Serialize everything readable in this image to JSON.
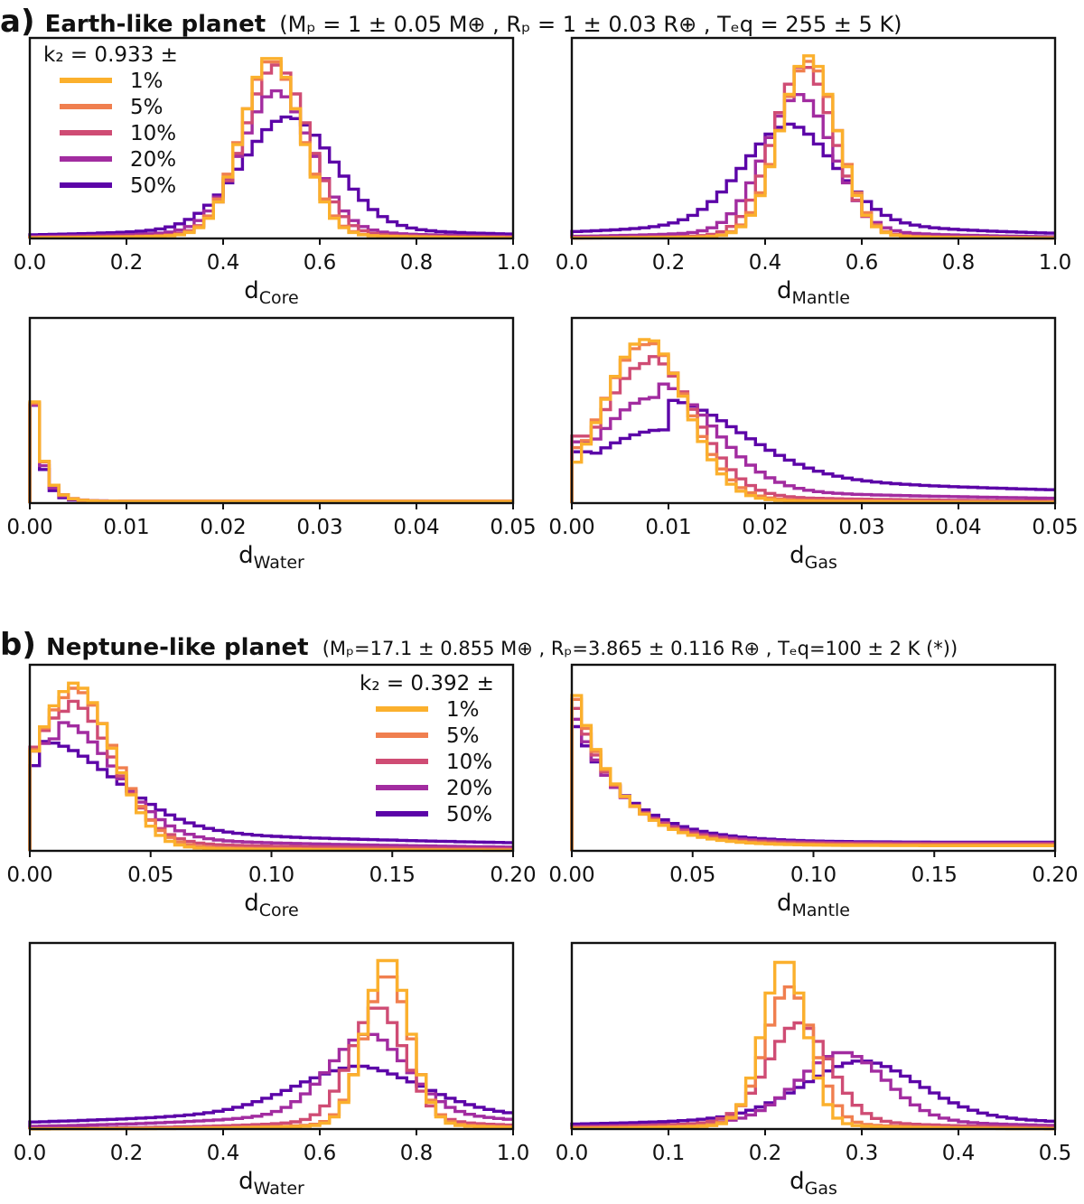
{
  "sections": [
    {
      "letter": "a)",
      "name": "Earth-like planet",
      "params": "(Mₚ = 1 ± 0.05 M⊕ , Rₚ = 1 ± 0.03 R⊕ , Tₑq = 255 ± 5 K)"
    },
    {
      "letter": "b)",
      "name": "Neptune-like planet",
      "params": "(Mₚ=17.1 ± 0.855 M⊕ , Rₚ=3.865 ± 0.116 R⊕ , Tₑq=100 ± 2 K (*))"
    }
  ],
  "colors": {
    "1%": "#fbb02d",
    "5%": "#f07f4f",
    "10%": "#cf4c74",
    "20%": "#a22ca0",
    "50%": "#5c04a8"
  },
  "legends": [
    {
      "panel": 0,
      "title": "k₂ = 0.933 ±",
      "entries": [
        "1%",
        "5%",
        "10%",
        "20%",
        "50%"
      ]
    },
    {
      "panel": 5,
      "title": "k₂ = 0.392 ±",
      "entries": [
        "1%",
        "5%",
        "10%",
        "20%",
        "50%"
      ]
    }
  ],
  "chart_data": [
    {
      "type": "histogram",
      "panel": 0,
      "xlabel": "d_Core",
      "xlim": [
        0,
        1.0
      ],
      "ticks": [
        "0.0",
        "0.2",
        "0.4",
        "0.6",
        "0.8",
        "1.0"
      ],
      "shape": "gauss",
      "series": [
        {
          "name": "1%",
          "center": 0.5,
          "width": 0.06,
          "height": 0.96,
          "tail": 0.03
        },
        {
          "name": "5%",
          "center": 0.5,
          "width": 0.062,
          "height": 0.94,
          "tail": 0.03
        },
        {
          "name": "10%",
          "center": 0.51,
          "width": 0.066,
          "height": 0.9,
          "tail": 0.04
        },
        {
          "name": "20%",
          "center": 0.51,
          "width": 0.072,
          "height": 0.74,
          "tail": 0.06
        },
        {
          "name": "50%",
          "center": 0.535,
          "width": 0.095,
          "height": 0.58,
          "tail": 0.08
        }
      ]
    },
    {
      "type": "histogram",
      "panel": 1,
      "xlabel": "d_Mantle",
      "xlim": [
        0,
        1.0
      ],
      "ticks": [
        "0.0",
        "0.2",
        "0.4",
        "0.6",
        "0.8",
        "1.0"
      ],
      "shape": "gauss",
      "series": [
        {
          "name": "1%",
          "center": 0.49,
          "width": 0.058,
          "height": 0.97,
          "tail": 0.02
        },
        {
          "name": "5%",
          "center": 0.49,
          "width": 0.06,
          "height": 0.94,
          "tail": 0.02
        },
        {
          "name": "10%",
          "center": 0.48,
          "width": 0.062,
          "height": 0.91,
          "tail": 0.03
        },
        {
          "name": "20%",
          "center": 0.47,
          "width": 0.07,
          "height": 0.72,
          "tail": 0.06
        },
        {
          "name": "50%",
          "center": 0.45,
          "width": 0.095,
          "height": 0.5,
          "tail": 0.12
        }
      ]
    },
    {
      "type": "histogram",
      "panel": 2,
      "xlabel": "d_Water",
      "xlim": [
        0,
        0.05
      ],
      "ticks": [
        "0.00",
        "0.01",
        "0.02",
        "0.03",
        "0.04",
        "0.05"
      ],
      "shape": "decay",
      "series": [
        {
          "name": "1%",
          "peak": 0.92,
          "scale": 0.0011,
          "floor": 0.01
        },
        {
          "name": "5%",
          "peak": 0.91,
          "scale": 0.0011,
          "floor": 0.01
        },
        {
          "name": "10%",
          "peak": 0.9,
          "scale": 0.0011,
          "floor": 0.012
        },
        {
          "name": "20%",
          "peak": 0.93,
          "scale": 0.001,
          "floor": 0.012
        },
        {
          "name": "50%",
          "peak": 0.98,
          "scale": 0.0009,
          "floor": 0.012
        }
      ]
    },
    {
      "type": "histogram",
      "panel": 3,
      "xlabel": "d_Gas",
      "xlim": [
        0,
        0.05
      ],
      "ticks": [
        "0.00",
        "0.01",
        "0.02",
        "0.03",
        "0.04",
        "0.05"
      ],
      "shape": "skew",
      "series": [
        {
          "name": "1%",
          "center": 0.0075,
          "width": 0.0042,
          "height": 0.96,
          "tail": 0.02,
          "start": 0.25
        },
        {
          "name": "5%",
          "center": 0.0075,
          "width": 0.0044,
          "height": 0.93,
          "tail": 0.03,
          "start": 0.35
        },
        {
          "name": "10%",
          "center": 0.0078,
          "width": 0.0048,
          "height": 0.82,
          "tail": 0.05,
          "start": 0.48
        },
        {
          "name": "20%",
          "center": 0.0085,
          "width": 0.006,
          "height": 0.62,
          "tail": 0.09,
          "start": 0.58
        },
        {
          "name": "50%",
          "center": 0.0095,
          "width": 0.008,
          "height": 0.43,
          "tail": 0.18,
          "start": 0.7
        }
      ]
    },
    {
      "type": "histogram",
      "panel": 4,
      "xlabel": "d_Core",
      "xlim": [
        0,
        0.2
      ],
      "ticks": [
        "0.00",
        "0.05",
        "0.10",
        "0.15",
        "0.20"
      ],
      "shape": "skew",
      "series": [
        {
          "name": "1%",
          "center": 0.018,
          "width": 0.016,
          "height": 0.96,
          "tail": 0.02,
          "start": 0.4
        },
        {
          "name": "5%",
          "center": 0.018,
          "width": 0.017,
          "height": 0.92,
          "tail": 0.03,
          "start": 0.45
        },
        {
          "name": "10%",
          "center": 0.016,
          "width": 0.018,
          "height": 0.82,
          "tail": 0.06,
          "start": 0.5
        },
        {
          "name": "20%",
          "center": 0.013,
          "width": 0.022,
          "height": 0.66,
          "tail": 0.09,
          "start": 0.58
        },
        {
          "name": "50%",
          "center": 0.005,
          "width": 0.03,
          "height": 0.5,
          "tail": 0.14,
          "start": 0.95
        }
      ]
    },
    {
      "type": "histogram",
      "panel": 5,
      "xlabel": "d_Mantle",
      "xlim": [
        0,
        0.2
      ],
      "ticks": [
        "0.00",
        "0.05",
        "0.10",
        "0.15",
        "0.20"
      ],
      "shape": "decay",
      "series": [
        {
          "name": "1%",
          "peak": 0.98,
          "scale": 0.018,
          "floor": 0.03
        },
        {
          "name": "5%",
          "peak": 0.95,
          "scale": 0.018,
          "floor": 0.035
        },
        {
          "name": "10%",
          "peak": 0.88,
          "scale": 0.019,
          "floor": 0.04
        },
        {
          "name": "20%",
          "peak": 0.8,
          "scale": 0.02,
          "floor": 0.045
        },
        {
          "name": "50%",
          "peak": 0.74,
          "scale": 0.022,
          "floor": 0.05
        }
      ]
    },
    {
      "type": "histogram",
      "panel": 6,
      "xlabel": "d_Water",
      "xlim": [
        0,
        1.0
      ],
      "ticks": [
        "0.0",
        "0.2",
        "0.4",
        "0.6",
        "0.8",
        "1.0"
      ],
      "shape": "gauss",
      "series": [
        {
          "name": "1%",
          "center": 0.74,
          "width": 0.045,
          "height": 0.97,
          "tail": 0.04
        },
        {
          "name": "5%",
          "center": 0.74,
          "width": 0.047,
          "height": 0.86,
          "tail": 0.05
        },
        {
          "name": "10%",
          "center": 0.72,
          "width": 0.055,
          "height": 0.64,
          "tail": 0.08
        },
        {
          "name": "20%",
          "center": 0.7,
          "width": 0.08,
          "height": 0.42,
          "tail": 0.14
        },
        {
          "name": "50%",
          "center": 0.68,
          "width": 0.13,
          "height": 0.22,
          "tail": 0.15
        }
      ]
    },
    {
      "type": "histogram",
      "panel": 7,
      "xlabel": "d_Gas",
      "xlim": [
        0,
        0.5
      ],
      "ticks": [
        "0.0",
        "0.1",
        "0.2",
        "0.3",
        "0.4",
        "0.5"
      ],
      "shape": "gauss",
      "series": [
        {
          "name": "1%",
          "center": 0.22,
          "width": 0.022,
          "height": 0.96,
          "tail": 0.04
        },
        {
          "name": "5%",
          "center": 0.225,
          "width": 0.025,
          "height": 0.78,
          "tail": 0.05
        },
        {
          "name": "10%",
          "center": 0.235,
          "width": 0.032,
          "height": 0.55,
          "tail": 0.07
        },
        {
          "name": "20%",
          "center": 0.28,
          "width": 0.045,
          "height": 0.38,
          "tail": 0.07
        },
        {
          "name": "50%",
          "center": 0.3,
          "width": 0.06,
          "height": 0.3,
          "tail": 0.1
        }
      ]
    }
  ]
}
